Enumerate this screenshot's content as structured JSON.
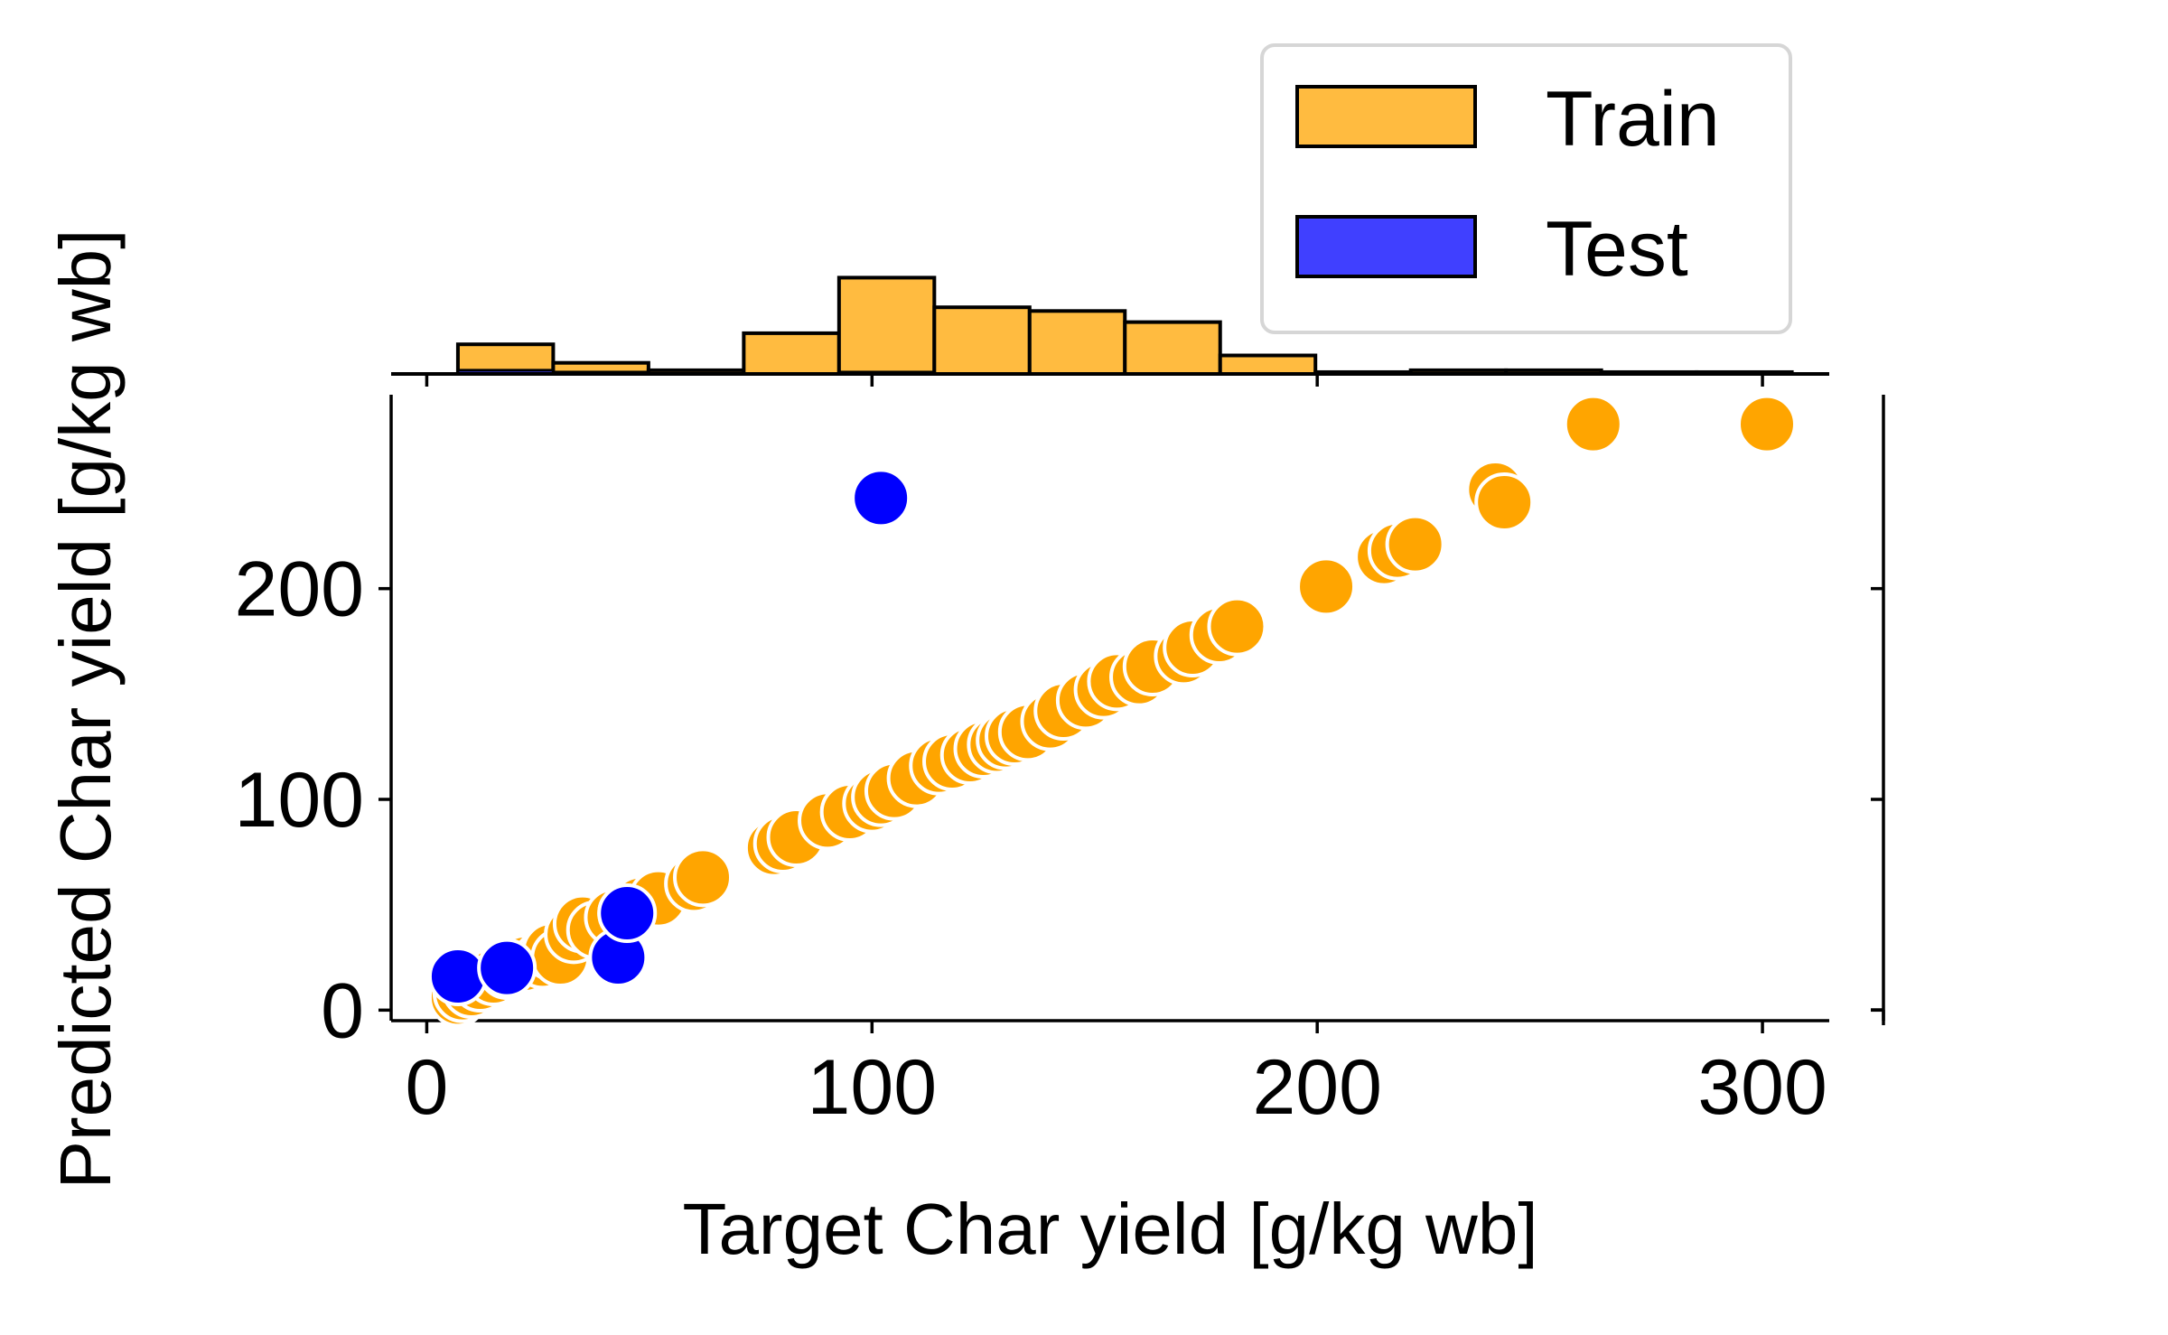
{
  "chart_data": {
    "type": "scatter",
    "title": "",
    "xlabel": "Target Char yield [g/kg wb]",
    "ylabel": "Predicted Char yield [g/kg wb]",
    "xlim": [
      -8,
      315
    ],
    "ylim": [
      -5,
      292
    ],
    "xticks": [
      "0",
      "100",
      "200",
      "300"
    ],
    "xtick_values": [
      0,
      100,
      200,
      300
    ],
    "yticks": [
      "0",
      "100",
      "200"
    ],
    "ytick_values": [
      0,
      100,
      200
    ],
    "grid": false,
    "legend": {
      "position": "top-right",
      "entries": [
        "Train",
        "Test"
      ]
    },
    "colors": {
      "train": "#FFA500",
      "test": "#0000FF",
      "train_hist": "#FFBB40",
      "test_hist": "#4040FF",
      "edge": "#000000",
      "marker_edge": "#FFFFFF"
    },
    "series": [
      {
        "name": "Train",
        "x": [
          7,
          8,
          10,
          12,
          15,
          18,
          22,
          26,
          28,
          30,
          33,
          35,
          38,
          42,
          45,
          48,
          52,
          60,
          62,
          78,
          80,
          83,
          90,
          95,
          100,
          102,
          105,
          110,
          115,
          118,
          122,
          125,
          128,
          130,
          132,
          135,
          140,
          143,
          148,
          152,
          155,
          160,
          163,
          170,
          172,
          178,
          182,
          202,
          215,
          218,
          222,
          240,
          242,
          262,
          301
        ],
        "y": [
          6,
          8,
          10,
          13,
          16,
          19,
          22,
          24,
          28,
          25,
          36,
          41,
          38,
          44,
          46,
          50,
          53,
          60,
          63,
          77,
          79,
          82,
          90,
          94,
          98,
          101,
          104,
          110,
          116,
          118,
          121,
          124,
          126,
          128,
          130,
          132,
          137,
          142,
          147,
          152,
          156,
          158,
          163,
          168,
          172,
          178,
          182,
          201,
          215,
          218,
          221,
          247,
          241,
          278,
          278
        ]
      },
      {
        "name": "Test",
        "x": [
          7,
          18,
          43,
          45,
          102
        ],
        "y": [
          16,
          20,
          25,
          46,
          243
        ]
      }
    ],
    "histogram": {
      "bin_edges": [
        7,
        28.4,
        49.8,
        71.2,
        92.6,
        114.0,
        135.4,
        156.8,
        178.2,
        199.6,
        221.0,
        242.4,
        263.8,
        285.2,
        306.6
      ],
      "train_counts": [
        8,
        3,
        1,
        11,
        26,
        18,
        17,
        14,
        5,
        0.5,
        1,
        1,
        0.5,
        0.5
      ],
      "test_counts": [
        1,
        0.5,
        0,
        0,
        0.5,
        0,
        0,
        0,
        0,
        0,
        0,
        0,
        0,
        0
      ]
    }
  }
}
